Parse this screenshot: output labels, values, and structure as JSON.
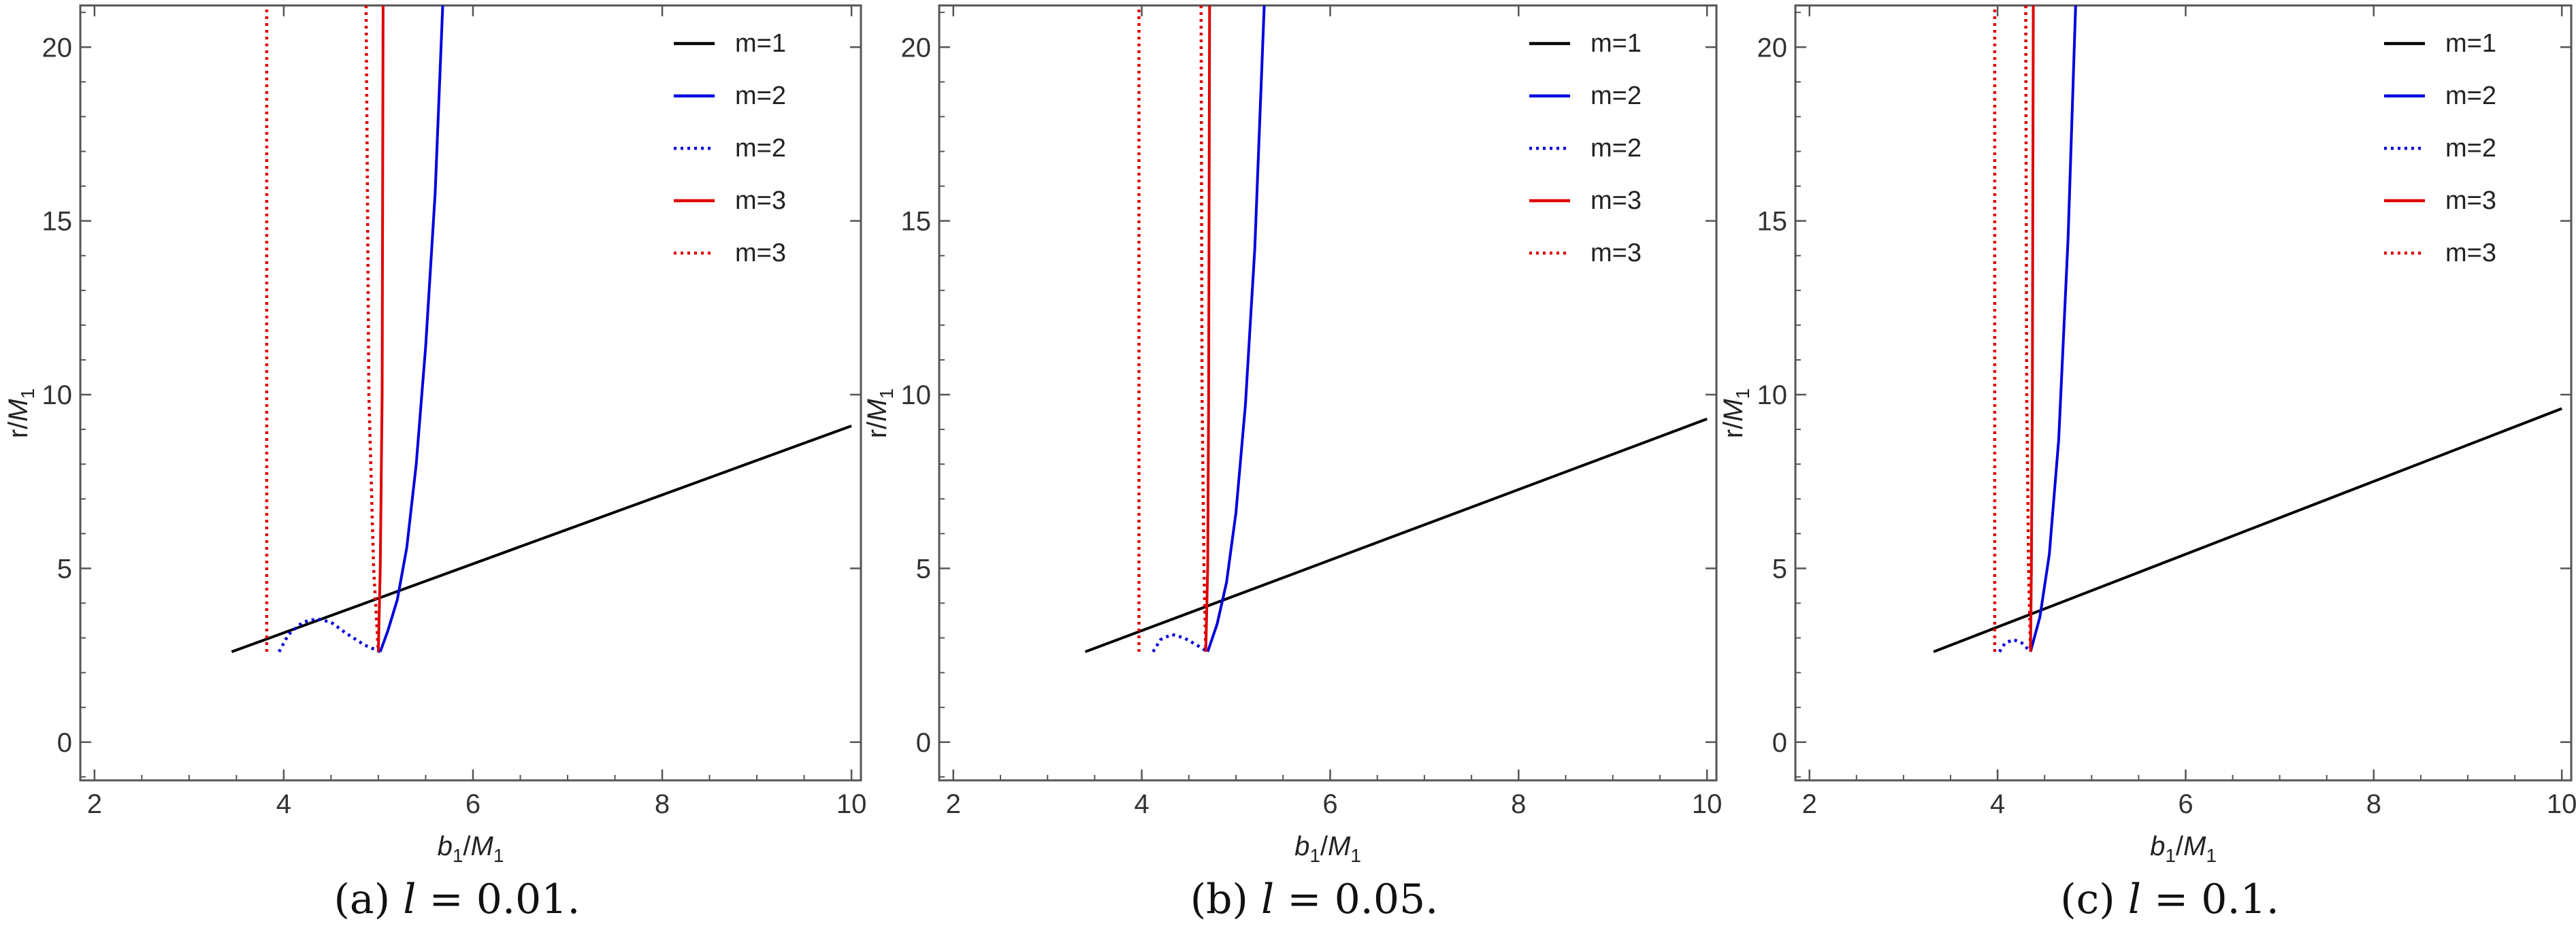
{
  "chart_data": [
    {
      "type": "line",
      "caption": "(a) l = 0.01.",
      "xlabel": "b1/M1",
      "ylabel": "r/M1",
      "xlim": [
        1.85,
        10.1
      ],
      "ylim": [
        -1.1,
        21.2
      ],
      "xticks": [
        2,
        4,
        6,
        8,
        10
      ],
      "yticks": [
        0,
        5,
        10,
        15,
        20
      ],
      "grid": false,
      "legend_position": "top-right",
      "legend": [
        "m=1",
        "m=2",
        "m=2",
        "m=3",
        "m=3"
      ],
      "series": [
        {
          "name": "m=1",
          "color": "#000000",
          "style": "solid",
          "points": [
            [
              3.45,
              2.6
            ],
            [
              10.0,
              9.1
            ]
          ]
        },
        {
          "name": "m=2",
          "color": "#0000dd",
          "style": "solid",
          "points": [
            [
              5.02,
              2.6
            ],
            [
              5.1,
              3.2
            ],
            [
              5.2,
              4.1
            ],
            [
              5.3,
              5.6
            ],
            [
              5.4,
              8.0
            ],
            [
              5.5,
              11.4
            ],
            [
              5.6,
              15.8
            ],
            [
              5.68,
              21.2
            ]
          ]
        },
        {
          "name": "m=2",
          "color": "#0000dd",
          "style": "dotted",
          "points": [
            [
              3.95,
              2.6
            ],
            [
              4.05,
              3.1
            ],
            [
              4.2,
              3.45
            ],
            [
              4.35,
              3.55
            ],
            [
              4.5,
              3.45
            ],
            [
              4.65,
              3.15
            ],
            [
              4.85,
              2.8
            ],
            [
              5.02,
              2.6
            ]
          ]
        },
        {
          "name": "m=3",
          "color": "#dd0000",
          "style": "solid",
          "points": [
            [
              5.0,
              2.6
            ],
            [
              5.02,
              5.0
            ],
            [
              5.04,
              10.0
            ],
            [
              5.05,
              21.2
            ]
          ]
        },
        {
          "name": "m=3",
          "color": "#dd0000",
          "style": "dotted",
          "points": [
            [
              3.82,
              2.6
            ],
            [
              3.82,
              21.2
            ]
          ]
        },
        {
          "name": "m=3",
          "color": "#dd0000",
          "style": "dotted",
          "points": [
            [
              4.87,
              21.2
            ],
            [
              4.9,
              10.0
            ],
            [
              4.95,
              5.0
            ],
            [
              5.0,
              2.6
            ]
          ]
        }
      ]
    },
    {
      "type": "line",
      "caption": "(b) l = 0.05.",
      "xlabel": "b1/M1",
      "ylabel": "r/M1",
      "xlim": [
        1.85,
        10.1
      ],
      "ylim": [
        -1.1,
        21.2
      ],
      "xticks": [
        2,
        4,
        6,
        8,
        10
      ],
      "yticks": [
        0,
        5,
        10,
        15,
        20
      ],
      "grid": false,
      "legend_position": "top-right",
      "legend": [
        "m=1",
        "m=2",
        "m=2",
        "m=3",
        "m=3"
      ],
      "series": [
        {
          "name": "m=1",
          "color": "#000000",
          "style": "solid",
          "points": [
            [
              3.4,
              2.6
            ],
            [
              10.0,
              9.3
            ]
          ]
        },
        {
          "name": "m=2",
          "color": "#0000dd",
          "style": "solid",
          "points": [
            [
              4.7,
              2.6
            ],
            [
              4.8,
              3.4
            ],
            [
              4.9,
              4.6
            ],
            [
              5.0,
              6.6
            ],
            [
              5.1,
              9.7
            ],
            [
              5.2,
              14.2
            ],
            [
              5.3,
              21.2
            ]
          ]
        },
        {
          "name": "m=2",
          "color": "#0000dd",
          "style": "dotted",
          "points": [
            [
              4.12,
              2.6
            ],
            [
              4.2,
              2.95
            ],
            [
              4.32,
              3.1
            ],
            [
              4.45,
              3.0
            ],
            [
              4.58,
              2.8
            ],
            [
              4.7,
              2.6
            ]
          ]
        },
        {
          "name": "m=3",
          "color": "#dd0000",
          "style": "solid",
          "points": [
            [
              4.68,
              2.6
            ],
            [
              4.7,
              5.0
            ],
            [
              4.71,
              10.0
            ],
            [
              4.72,
              21.2
            ]
          ]
        },
        {
          "name": "m=3",
          "color": "#dd0000",
          "style": "dotted",
          "points": [
            [
              3.97,
              2.6
            ],
            [
              3.97,
              21.2
            ]
          ]
        },
        {
          "name": "m=3",
          "color": "#dd0000",
          "style": "dotted",
          "points": [
            [
              4.63,
              21.2
            ],
            [
              4.64,
              10.0
            ],
            [
              4.66,
              5.0
            ],
            [
              4.68,
              2.6
            ]
          ]
        }
      ]
    },
    {
      "type": "line",
      "caption": "(c) l = 0.1.",
      "xlabel": "b1/M1",
      "ylabel": "r/M1",
      "xlim": [
        1.85,
        10.1
      ],
      "ylim": [
        -1.1,
        21.2
      ],
      "xticks": [
        2,
        4,
        6,
        8,
        10
      ],
      "yticks": [
        0,
        5,
        10,
        15,
        20
      ],
      "grid": false,
      "legend_position": "top-right",
      "legend": [
        "m=1",
        "m=2",
        "m=2",
        "m=3",
        "m=3"
      ],
      "series": [
        {
          "name": "m=1",
          "color": "#000000",
          "style": "solid",
          "points": [
            [
              3.32,
              2.6
            ],
            [
              10.0,
              9.6
            ]
          ]
        },
        {
          "name": "m=2",
          "color": "#0000dd",
          "style": "solid",
          "points": [
            [
              4.35,
              2.6
            ],
            [
              4.45,
              3.6
            ],
            [
              4.55,
              5.4
            ],
            [
              4.65,
              8.7
            ],
            [
              4.75,
              14.5
            ],
            [
              4.83,
              21.2
            ]
          ]
        },
        {
          "name": "m=2",
          "color": "#0000dd",
          "style": "dotted",
          "points": [
            [
              4.02,
              2.6
            ],
            [
              4.08,
              2.85
            ],
            [
              4.17,
              2.95
            ],
            [
              4.26,
              2.85
            ],
            [
              4.35,
              2.6
            ]
          ]
        },
        {
          "name": "m=3",
          "color": "#dd0000",
          "style": "solid",
          "points": [
            [
              4.35,
              2.6
            ],
            [
              4.36,
              5.0
            ],
            [
              4.37,
              10.0
            ],
            [
              4.38,
              21.2
            ]
          ]
        },
        {
          "name": "m=3",
          "color": "#dd0000",
          "style": "dotted",
          "points": [
            [
              3.97,
              2.6
            ],
            [
              3.97,
              21.2
            ]
          ]
        },
        {
          "name": "m=3",
          "color": "#dd0000",
          "style": "dotted",
          "points": [
            [
              4.3,
              21.2
            ],
            [
              4.31,
              10.0
            ],
            [
              4.33,
              5.0
            ],
            [
              4.35,
              2.6
            ]
          ]
        }
      ]
    }
  ]
}
